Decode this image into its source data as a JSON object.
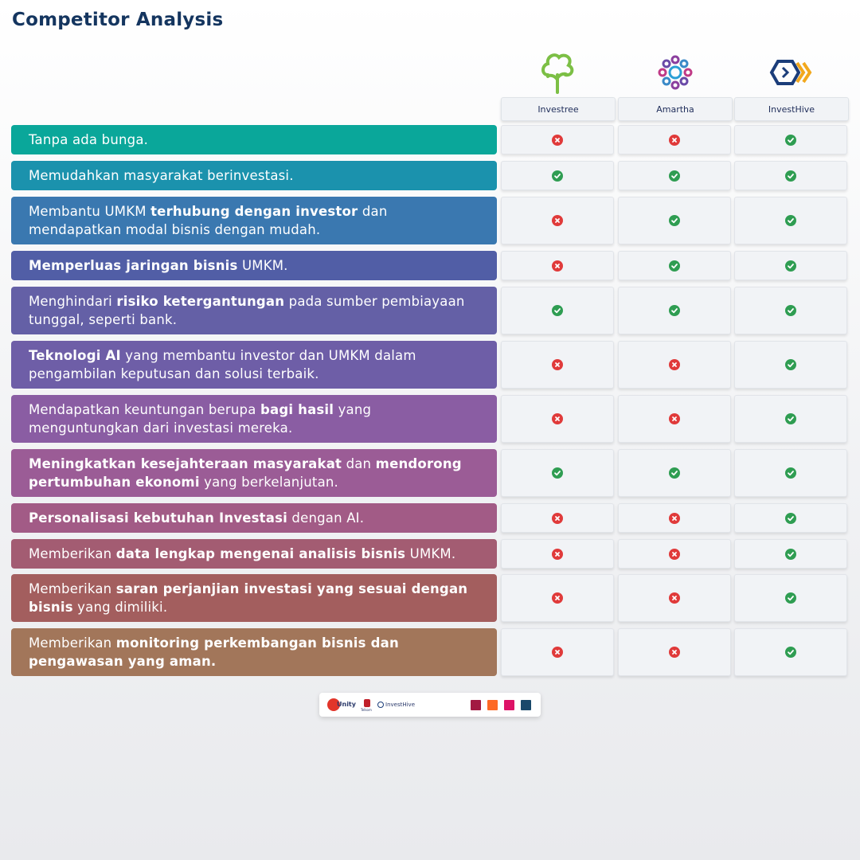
{
  "title": "Competitor Analysis",
  "competitors": [
    {
      "name": "Investree",
      "logo": "tree-logo-icon"
    },
    {
      "name": "Amartha",
      "logo": "mandala-logo-icon"
    },
    {
      "name": "InvestHive",
      "logo": "hexagon-logo-icon"
    }
  ],
  "colors": {
    "title": "#14355f",
    "yes": "#2f9d52",
    "no": "#e03a3a"
  },
  "rows": [
    {
      "segments": [
        {
          "t": "Tanpa ada bunga.",
          "b": false
        }
      ],
      "color": "#0aa79a",
      "marks": [
        false,
        false,
        true
      ]
    },
    {
      "segments": [
        {
          "t": "Memudahkan masyarakat berinvestasi.",
          "b": false
        }
      ],
      "color": "#1b92ad",
      "marks": [
        true,
        true,
        true
      ]
    },
    {
      "segments": [
        {
          "t": "Membantu UMKM ",
          "b": false
        },
        {
          "t": "terhubung dengan investor",
          "b": true
        },
        {
          "t": " dan mendapatkan modal bisnis dengan mudah.",
          "b": false
        }
      ],
      "color": "#3a78b0",
      "marks": [
        false,
        true,
        true
      ]
    },
    {
      "segments": [
        {
          "t": "Memperluas jaringan bisnis",
          "b": true
        },
        {
          "t": " UMKM.",
          "b": false
        }
      ],
      "color": "#515ea6",
      "marks": [
        false,
        true,
        true
      ]
    },
    {
      "segments": [
        {
          "t": "Menghindari ",
          "b": false
        },
        {
          "t": "risiko ketergantungan",
          "b": true
        },
        {
          "t": " pada sumber pembiayaan tunggal, seperti bank.",
          "b": false
        }
      ],
      "color": "#6460a6",
      "marks": [
        true,
        true,
        true
      ]
    },
    {
      "segments": [
        {
          "t": "Teknologi AI",
          "b": true
        },
        {
          "t": " yang membantu investor dan UMKM dalam pengambilan keputusan dan solusi terbaik.",
          "b": false
        }
      ],
      "color": "#6e5ea7",
      "marks": [
        false,
        false,
        true
      ]
    },
    {
      "segments": [
        {
          "t": "Mendapatkan keuntungan berupa ",
          "b": false
        },
        {
          "t": "bagi hasil",
          "b": true
        },
        {
          "t": " yang menguntungkan dari investasi mereka.",
          "b": false
        }
      ],
      "color": "#8a5da3",
      "marks": [
        false,
        false,
        true
      ]
    },
    {
      "segments": [
        {
          "t": "Meningkatkan kesejahteraan masyarakat",
          "b": true
        },
        {
          "t": " dan ",
          "b": false
        },
        {
          "t": "mendorong pertumbuhan ekonomi",
          "b": true
        },
        {
          "t": " yang berkelanjutan.",
          "b": false
        }
      ],
      "color": "#9b5c96",
      "marks": [
        true,
        true,
        true
      ]
    },
    {
      "segments": [
        {
          "t": "Personalisasi kebutuhan Investasi",
          "b": true
        },
        {
          "t": " dengan AI.",
          "b": false
        }
      ],
      "color": "#a25b86",
      "marks": [
        false,
        false,
        true
      ]
    },
    {
      "segments": [
        {
          "t": "Memberikan ",
          "b": false
        },
        {
          "t": "data lengkap mengenai analisis bisnis",
          "b": true
        },
        {
          "t": " UMKM.",
          "b": false
        }
      ],
      "color": "#a35c72",
      "marks": [
        false,
        false,
        true
      ]
    },
    {
      "segments": [
        {
          "t": "Memberikan ",
          "b": false
        },
        {
          "t": "saran perjanjian investasi yang sesuai dengan bisnis",
          "b": true
        },
        {
          "t": " yang dimiliki.",
          "b": false
        }
      ],
      "color": "#a35e5e",
      "marks": [
        false,
        false,
        true
      ]
    },
    {
      "segments": [
        {
          "t": "Memberikan ",
          "b": false
        },
        {
          "t": "monitoring perkembangan bisnis dan pengawasan yang aman.",
          "b": true
        }
      ],
      "color": "#a2765a",
      "marks": [
        false,
        false,
        true
      ]
    }
  ],
  "footer": {
    "logos": [
      "Unity",
      "Telkom",
      "InvestHive"
    ],
    "sdg_colors": [
      "#a21942",
      "#fd6925",
      "#dd1367",
      "#19486a"
    ]
  }
}
